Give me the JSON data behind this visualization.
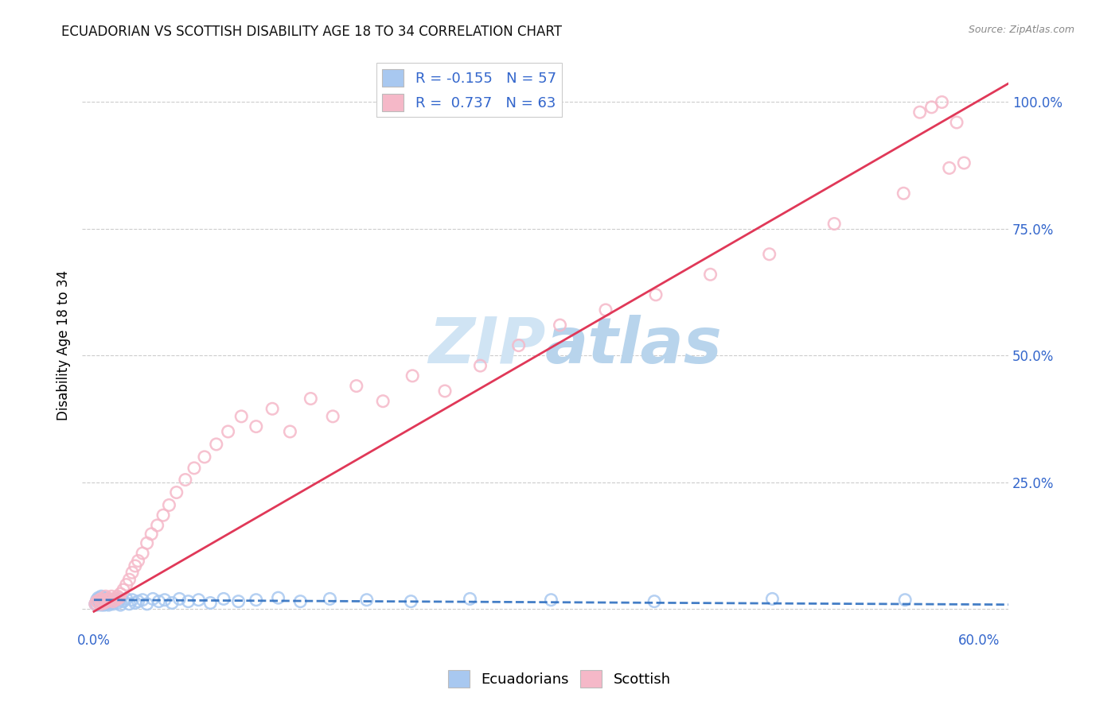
{
  "title": "ECUADORIAN VS SCOTTISH DISABILITY AGE 18 TO 34 CORRELATION CHART",
  "source": "Source: ZipAtlas.com",
  "ylabel": "Disability Age 18 to 34",
  "blue_R": -0.155,
  "blue_N": 57,
  "pink_R": 0.737,
  "pink_N": 63,
  "blue_color": "#A8C8F0",
  "pink_color": "#F5B8C8",
  "blue_line_color": "#3070C0",
  "pink_line_color": "#E03858",
  "watermark_color": "#D0E4F4",
  "grid_color": "#CCCCCC",
  "tick_color": "#3366CC",
  "title_color": "#111111",
  "source_color": "#888888",
  "xlim": [
    0.0,
    0.62
  ],
  "ylim": [
    -0.04,
    1.08
  ],
  "blue_slope": -0.015,
  "blue_intercept": 0.018,
  "pink_slope": 1.68,
  "pink_intercept": -0.005,
  "blue_x": [
    0.001,
    0.002,
    0.002,
    0.003,
    0.003,
    0.004,
    0.004,
    0.005,
    0.005,
    0.005,
    0.006,
    0.006,
    0.007,
    0.007,
    0.008,
    0.008,
    0.009,
    0.009,
    0.01,
    0.01,
    0.011,
    0.012,
    0.013,
    0.014,
    0.015,
    0.016,
    0.017,
    0.018,
    0.02,
    0.022,
    0.024,
    0.026,
    0.028,
    0.03,
    0.033,
    0.036,
    0.04,
    0.044,
    0.048,
    0.053,
    0.058,
    0.064,
    0.071,
    0.079,
    0.088,
    0.098,
    0.11,
    0.125,
    0.14,
    0.16,
    0.185,
    0.215,
    0.255,
    0.31,
    0.38,
    0.46,
    0.55
  ],
  "blue_y": [
    0.01,
    0.018,
    0.008,
    0.015,
    0.022,
    0.01,
    0.02,
    0.008,
    0.015,
    0.025,
    0.01,
    0.018,
    0.008,
    0.022,
    0.012,
    0.018,
    0.01,
    0.02,
    0.008,
    0.015,
    0.012,
    0.018,
    0.01,
    0.015,
    0.02,
    0.012,
    0.018,
    0.008,
    0.015,
    0.02,
    0.01,
    0.018,
    0.012,
    0.015,
    0.018,
    0.01,
    0.02,
    0.015,
    0.018,
    0.012,
    0.02,
    0.015,
    0.018,
    0.012,
    0.02,
    0.015,
    0.018,
    0.022,
    0.015,
    0.02,
    0.018,
    0.015,
    0.02,
    0.018,
    0.015,
    0.02,
    0.018
  ],
  "pink_x": [
    0.001,
    0.002,
    0.003,
    0.004,
    0.005,
    0.005,
    0.006,
    0.007,
    0.008,
    0.008,
    0.009,
    0.01,
    0.011,
    0.012,
    0.013,
    0.014,
    0.015,
    0.016,
    0.017,
    0.018,
    0.02,
    0.022,
    0.024,
    0.026,
    0.028,
    0.03,
    0.033,
    0.036,
    0.039,
    0.043,
    0.047,
    0.051,
    0.056,
    0.062,
    0.068,
    0.075,
    0.083,
    0.091,
    0.1,
    0.11,
    0.121,
    0.133,
    0.147,
    0.162,
    0.178,
    0.196,
    0.216,
    0.238,
    0.262,
    0.288,
    0.316,
    0.347,
    0.381,
    0.418,
    0.458,
    0.502,
    0.549,
    0.56,
    0.568,
    0.575,
    0.58,
    0.585,
    0.59
  ],
  "pink_y": [
    0.01,
    0.015,
    0.012,
    0.018,
    0.01,
    0.02,
    0.015,
    0.012,
    0.018,
    0.025,
    0.015,
    0.02,
    0.018,
    0.025,
    0.015,
    0.02,
    0.018,
    0.025,
    0.022,
    0.03,
    0.038,
    0.048,
    0.058,
    0.072,
    0.085,
    0.095,
    0.11,
    0.13,
    0.148,
    0.165,
    0.185,
    0.205,
    0.23,
    0.255,
    0.278,
    0.3,
    0.325,
    0.35,
    0.38,
    0.36,
    0.395,
    0.35,
    0.415,
    0.38,
    0.44,
    0.41,
    0.46,
    0.43,
    0.48,
    0.52,
    0.56,
    0.59,
    0.62,
    0.66,
    0.7,
    0.76,
    0.82,
    0.98,
    0.99,
    1.0,
    0.87,
    0.96,
    0.88
  ]
}
